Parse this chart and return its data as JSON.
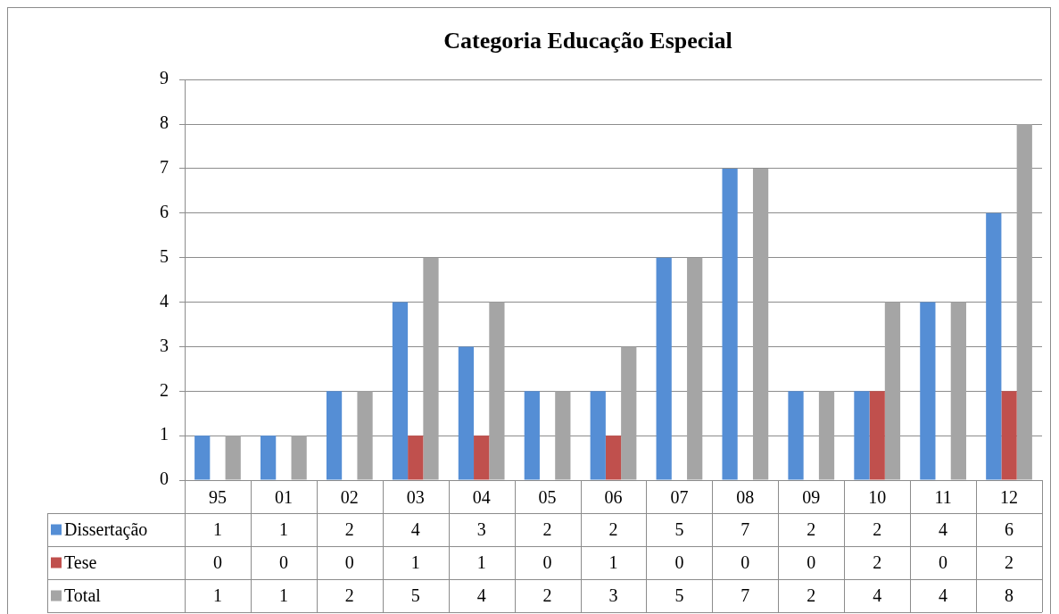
{
  "chart_data": {
    "type": "bar",
    "title": "Categoria Educação Especial",
    "categories": [
      "95",
      "01",
      "02",
      "03",
      "04",
      "05",
      "06",
      "07",
      "08",
      "09",
      "10",
      "11",
      "12"
    ],
    "series": [
      {
        "name": "Dissertação",
        "color": "#558ed5",
        "values": [
          1,
          1,
          2,
          4,
          3,
          2,
          2,
          5,
          7,
          2,
          2,
          4,
          6
        ]
      },
      {
        "name": "Tese",
        "color": "#c0504d",
        "values": [
          0,
          0,
          0,
          1,
          1,
          0,
          1,
          0,
          0,
          0,
          2,
          0,
          2
        ]
      },
      {
        "name": "Total",
        "color": "#a5a5a5",
        "values": [
          1,
          1,
          2,
          5,
          4,
          2,
          3,
          5,
          7,
          2,
          4,
          4,
          8
        ]
      }
    ],
    "ylim": [
      0,
      9
    ],
    "yticks": [
      0,
      1,
      2,
      3,
      4,
      5,
      6,
      7,
      8,
      9
    ],
    "grid": "y",
    "legend": "bottom left",
    "data_labels": true
  }
}
